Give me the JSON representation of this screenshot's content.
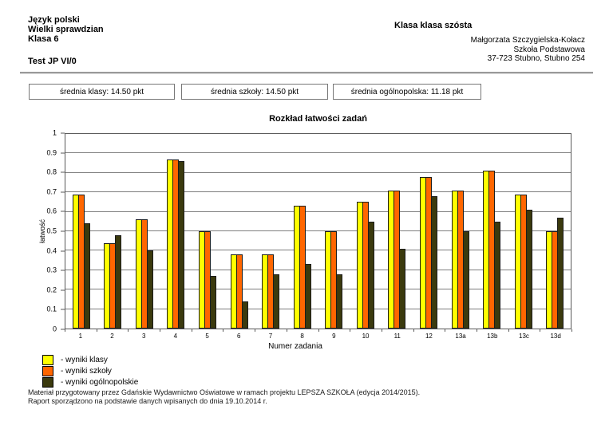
{
  "header": {
    "subject": "Język polski",
    "test_name": "Wielki sprawdzian",
    "class_line": "Klasa 6",
    "test_code": "Test JP VI/0",
    "class_title": "Klasa klasa szósta",
    "teacher": "Małgorzata Szczygielska-Kołacz",
    "school": "Szkoła Podstawowa",
    "address": "37-723 Stubno, Stubno 254"
  },
  "summary_boxes": [
    {
      "label": "średnia klasy: 14.50 pkt"
    },
    {
      "label": "średnia szkoły: 14.50 pkt"
    },
    {
      "label": "średnia ogólnopolska: 11.18 pkt"
    }
  ],
  "chart_data": {
    "type": "bar",
    "title": "Rozkład łatwości zadań",
    "xlabel": "Numer zadania",
    "ylabel": "łatwość",
    "ylim": [
      0,
      1
    ],
    "y_ticks": [
      "0",
      "0.1",
      "0.2",
      "0.3",
      "0.4",
      "0.5",
      "0.6",
      "0.7",
      "0.8",
      "0.9",
      "1"
    ],
    "grid": true,
    "legend_position": "bottom-left",
    "categories": [
      "1",
      "2",
      "3",
      "4",
      "5",
      "6",
      "7",
      "8",
      "9",
      "10",
      "11",
      "12",
      "13a",
      "13b",
      "13c",
      "13d"
    ],
    "series": [
      {
        "name": "- wyniki klasy",
        "color": "#ffff00",
        "values": [
          0.69,
          0.44,
          0.56,
          0.87,
          0.5,
          0.38,
          0.38,
          0.63,
          0.5,
          0.65,
          0.71,
          0.78,
          0.71,
          0.81,
          0.69,
          0.5
        ]
      },
      {
        "name": "- wyniki szkoły",
        "color": "#ff6600",
        "values": [
          0.69,
          0.44,
          0.56,
          0.87,
          0.5,
          0.38,
          0.38,
          0.63,
          0.5,
          0.65,
          0.71,
          0.78,
          0.71,
          0.81,
          0.69,
          0.5
        ]
      },
      {
        "name": "- wyniki ogólnopolskie",
        "color": "#3b3a0e",
        "values": [
          0.54,
          0.48,
          0.4,
          0.86,
          0.27,
          0.14,
          0.28,
          0.33,
          0.28,
          0.55,
          0.41,
          0.68,
          0.5,
          0.55,
          0.61,
          0.57
        ]
      }
    ]
  },
  "footer": {
    "line1": "Materiał przygotowany przez Gdańskie Wydawnictwo Oświatowe w ramach projektu LEPSZA SZKOŁA (edycja 2014/2015).",
    "line2": "Raport sporządzono na podstawie danych wpisanych do dnia 19.10.2014 r."
  }
}
